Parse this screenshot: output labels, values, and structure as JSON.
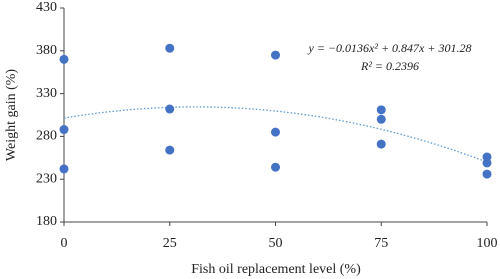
{
  "chart_data": {
    "type": "scatter",
    "x_label": "Fish oil replacement level (%)",
    "y_label": "Weight gain (%)",
    "series": [
      {
        "color": "#4472c4",
        "x": [
          0,
          0,
          0,
          25,
          25,
          25,
          50,
          50,
          50,
          75,
          75,
          75,
          100,
          100,
          100
        ],
        "values": [
          370,
          288,
          242,
          383,
          312,
          264,
          375,
          285,
          244,
          311,
          300,
          271,
          256,
          249,
          236
        ]
      }
    ],
    "trendline": {
      "color": "#5b9bd5",
      "coefficients": [
        -0.0136,
        0.847,
        301.28
      ]
    },
    "annotations": [
      "y = −0.0136x² + 0.847x + 301.28",
      "R² = 0.2396"
    ],
    "xlim": [
      0,
      100
    ],
    "xticks": [
      0,
      25,
      50,
      75,
      100
    ],
    "ylim": [
      180,
      430
    ],
    "yticks": [
      180,
      230,
      280,
      330,
      380,
      430
    ]
  }
}
